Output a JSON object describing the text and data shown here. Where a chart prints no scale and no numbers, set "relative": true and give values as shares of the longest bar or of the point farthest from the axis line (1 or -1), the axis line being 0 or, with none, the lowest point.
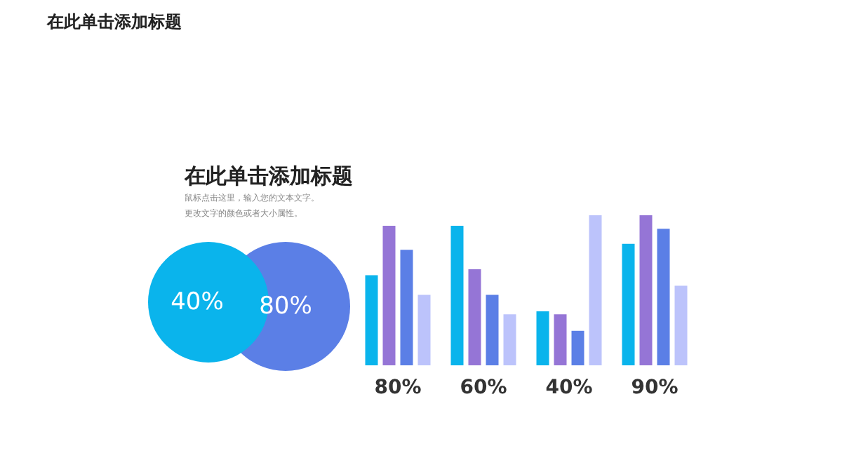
{
  "chart_data": {
    "type": "bar",
    "relative": true,
    "title": "在此单击添加标题",
    "subtitle": "鼠标点击这里，输入您的文本文字。更改文字的颜色或者大小属性。",
    "annotations": [
      "在此单击添加标题",
      "40%",
      "80%"
    ],
    "categories": [
      "80%",
      "60%",
      "40%",
      "90%"
    ],
    "series": [
      {
        "color": "#0ab4ec",
        "values": [
          0.6,
          0.93,
          0.36,
          0.81
        ]
      },
      {
        "color": "#9575d6",
        "values": [
          0.93,
          0.64,
          0.34,
          1.0
        ]
      },
      {
        "color": "#5b7fe6",
        "values": [
          0.77,
          0.47,
          0.23,
          0.91
        ]
      },
      {
        "color": "#bcc3fb",
        "values": [
          0.47,
          0.34,
          1.0,
          0.53
        ]
      }
    ],
    "grid": false
  }
}
